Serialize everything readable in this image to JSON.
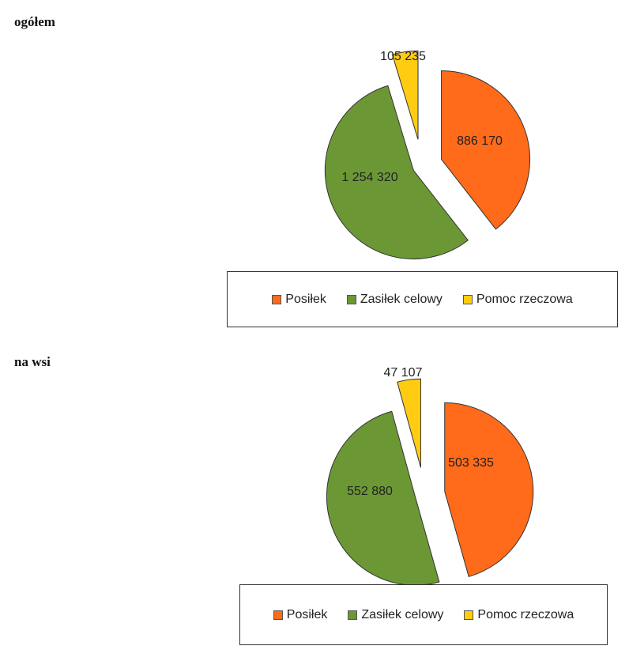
{
  "charts": [
    {
      "section_title": "ogółem",
      "legend": [
        "Posiłek",
        "Zasiłek celowy",
        "Pomoc rzeczowa"
      ]
    },
    {
      "section_title": "na wsi",
      "legend": [
        "Posiłek",
        "Zasiłek celowy",
        "Pomoc rzeczowa"
      ]
    }
  ],
  "colors": {
    "Posiłek": "#ff6b1a",
    "Zasiłek celowy": "#6b9834",
    "Pomoc rzeczowa": "#ffcc11"
  },
  "chart_data": [
    {
      "type": "pie",
      "title": "ogółem",
      "categories": [
        "Posiłek",
        "Zasiłek celowy",
        "Pomoc rzeczowa"
      ],
      "values": [
        886170,
        1254320,
        105235
      ],
      "value_labels": [
        "886 170",
        "1 254 320",
        "105 235"
      ],
      "exploded": true,
      "legend_position": "bottom"
    },
    {
      "type": "pie",
      "title": "na wsi",
      "categories": [
        "Posiłek",
        "Zasiłek celowy",
        "Pomoc rzeczowa"
      ],
      "values": [
        503335,
        552880,
        47107
      ],
      "value_labels": [
        "503 335",
        "552 880",
        "47 107"
      ],
      "exploded": true,
      "legend_position": "bottom"
    }
  ]
}
